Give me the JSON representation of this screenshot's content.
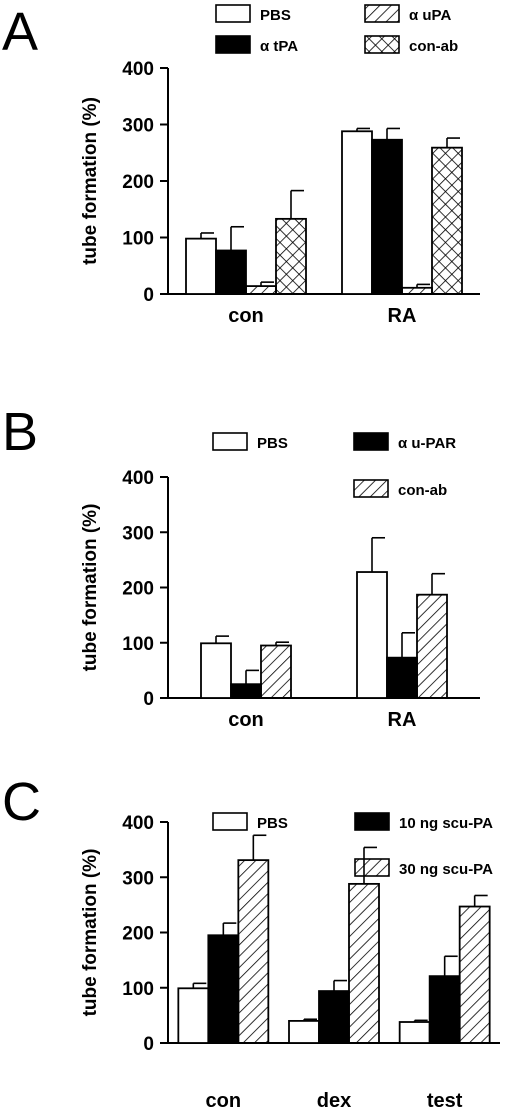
{
  "chart_data": [
    {
      "type": "bar",
      "panel_label": "A",
      "categories": [
        "con",
        "RA"
      ],
      "ylabel": "tube formation (%)",
      "ylim": [
        0,
        400
      ],
      "yticks": [
        0,
        100,
        200,
        300,
        400
      ],
      "legend_placement": "top",
      "series": [
        {
          "name": "PBS",
          "fill": "white",
          "values": [
            98,
            288
          ],
          "errors": [
            10,
            5
          ]
        },
        {
          "name": "α tPA",
          "fill": "black",
          "values": [
            77,
            273
          ],
          "errors": [
            42,
            20
          ]
        },
        {
          "name": "α uPA",
          "fill": "hatch",
          "values": [
            14,
            11
          ],
          "errors": [
            7,
            6
          ]
        },
        {
          "name": "con-ab",
          "fill": "crosshatch",
          "values": [
            133,
            259
          ],
          "errors": [
            50,
            17
          ]
        }
      ]
    },
    {
      "type": "bar",
      "panel_label": "B",
      "categories": [
        "con",
        "RA"
      ],
      "ylabel": "tube formation (%)",
      "ylim": [
        0,
        400
      ],
      "yticks": [
        0,
        100,
        200,
        300,
        400
      ],
      "legend_placement": "top",
      "series": [
        {
          "name": "PBS",
          "fill": "white",
          "values": [
            99,
            228
          ],
          "errors": [
            13,
            62
          ]
        },
        {
          "name": "α u-PAR",
          "fill": "black",
          "values": [
            25,
            73
          ],
          "errors": [
            25,
            45
          ]
        },
        {
          "name": "con-ab",
          "fill": "hatch",
          "values": [
            95,
            187
          ],
          "errors": [
            6,
            38
          ]
        }
      ]
    },
    {
      "type": "bar",
      "panel_label": "C",
      "categories": [
        "con",
        "dex",
        "test"
      ],
      "ylabel": "tube formation (%)",
      "ylim": [
        0,
        400
      ],
      "yticks": [
        0,
        100,
        200,
        300,
        400
      ],
      "legend_placement": "top-right",
      "series": [
        {
          "name": "PBS",
          "fill": "white",
          "values": [
            99,
            40,
            38
          ],
          "errors": [
            9,
            3,
            3
          ]
        },
        {
          "name": "10 ng scu-PA",
          "fill": "black",
          "values": [
            195,
            94,
            121
          ],
          "errors": [
            22,
            19,
            36
          ]
        },
        {
          "name": "30 ng scu-PA",
          "fill": "hatch",
          "values": [
            331,
            288,
            247
          ],
          "errors": [
            45,
            66,
            20
          ]
        }
      ]
    }
  ]
}
